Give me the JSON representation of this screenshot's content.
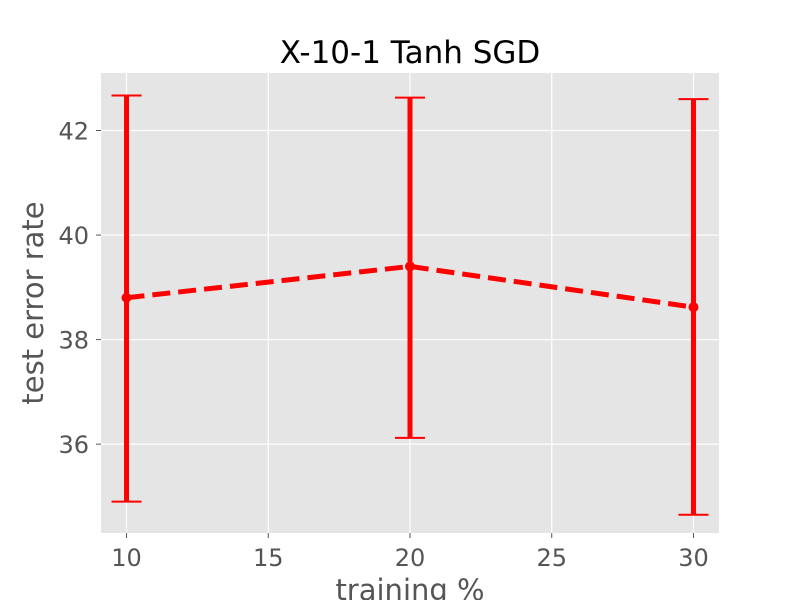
{
  "chart_data": {
    "type": "line",
    "title": "X-10-1 Tanh SGD",
    "xlabel": "training %",
    "ylabel": "test error rate",
    "x": [
      10,
      20,
      30
    ],
    "series": [
      {
        "values": [
          38.8,
          39.4,
          38.62
        ],
        "error_low": [
          34.9,
          36.12,
          34.65
        ],
        "error_high": [
          42.67,
          42.63,
          42.6
        ],
        "color": "#ff0000",
        "line_style": "dashed"
      }
    ],
    "xlim": [
      9.1,
      30.9
    ],
    "ylim": [
      34.3,
      43.1
    ],
    "xticks": [
      10,
      15,
      20,
      25,
      30
    ],
    "yticks": [
      36,
      38,
      40,
      42
    ],
    "grid": true,
    "background": "#e5e5e5",
    "gridColor": "#ffffff"
  }
}
